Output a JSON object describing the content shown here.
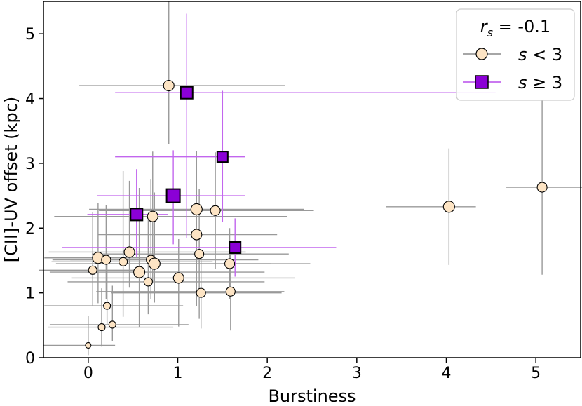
{
  "chart_data": {
    "type": "scatter",
    "xlabel": "Burstiness",
    "ylabel": "[CII]-UV offset (kpc)",
    "xlim": [
      -0.5,
      5.5
    ],
    "ylim": [
      0,
      5.5
    ],
    "xticks": [
      0,
      1,
      2,
      3,
      4,
      5
    ],
    "yticks": [
      0,
      1,
      2,
      3,
      4,
      5
    ],
    "grid": false,
    "legend_position": "top-right",
    "legend": {
      "title_var": "r",
      "title_sub": "s",
      "title_value": " = -0.1",
      "entries": [
        {
          "var": "s",
          "op": " < 3",
          "color": "#fde4c4",
          "marker": "circle"
        },
        {
          "var": "s",
          "op": " ≥ 3",
          "color": "#8b00d6",
          "marker": "square"
        }
      ]
    },
    "series": [
      {
        "name": "s < 3",
        "marker": "circle",
        "color": "#fde4c4",
        "errorbar_color": "#999999",
        "points": [
          {
            "x": 0.0,
            "y": 0.19,
            "xerr": [
              0.5,
              0.3
            ],
            "yerr": [
              0.15,
              0.45
            ],
            "size": 4
          },
          {
            "x": 0.15,
            "y": 0.47,
            "xerr": [
              0.6,
              0.8
            ],
            "yerr": [
              0.3,
              0.6
            ],
            "size": 5
          },
          {
            "x": 0.27,
            "y": 0.51,
            "xerr": [
              0.7,
              0.85
            ],
            "yerr": [
              0.25,
              0.6
            ],
            "size": 5
          },
          {
            "x": 0.21,
            "y": 0.8,
            "xerr": [
              0.7,
              0.85
            ],
            "yerr": [
              0.3,
              0.7
            ],
            "size": 5
          },
          {
            "x": 0.05,
            "y": 1.35,
            "xerr": [
              0.6,
              0.5
            ],
            "yerr": [
              0.55,
              0.9
            ],
            "size": 6
          },
          {
            "x": 0.11,
            "y": 1.54,
            "xerr": [
              0.6,
              0.6
            ],
            "yerr": [
              0.7,
              0.85
            ],
            "size": 8
          },
          {
            "x": 0.2,
            "y": 1.51,
            "xerr": [
              0.6,
              0.5
            ],
            "yerr": [
              0.6,
              0.85
            ],
            "size": 6.5
          },
          {
            "x": 0.39,
            "y": 1.48,
            "xerr": [
              0.8,
              1.0
            ],
            "yerr": [
              0.85,
              1.4
            ],
            "size": 6
          },
          {
            "x": 0.46,
            "y": 1.63,
            "xerr": [
              0.9,
              1.3
            ],
            "yerr": [
              0.55,
              1.1
            ],
            "size": 7.5
          },
          {
            "x": 0.57,
            "y": 1.32,
            "xerr": [
              1.0,
              1.4
            ],
            "yerr": [
              0.85,
              1.3
            ],
            "size": 8
          },
          {
            "x": 0.67,
            "y": 1.17,
            "xerr": [
              0.9,
              1.3
            ],
            "yerr": [
              0.5,
              1.0
            ],
            "size": 6
          },
          {
            "x": 0.7,
            "y": 1.51,
            "xerr": [
              0.9,
              1.2
            ],
            "yerr": [
              0.6,
              1.25
            ],
            "size": 6.5
          },
          {
            "x": 0.74,
            "y": 1.45,
            "xerr": [
              1.1,
              1.3
            ],
            "yerr": [
              0.6,
              1.1
            ],
            "size": 8
          },
          {
            "x": 0.72,
            "y": 2.18,
            "xerr": [
              1.1,
              1.5
            ],
            "yerr": [
              1.0,
              1.0
            ],
            "size": 7.5
          },
          {
            "x": 0.9,
            "y": 4.2,
            "xerr": [
              1.0,
              1.3
            ],
            "yerr": [
              0.9,
              1.3
            ],
            "size": 7.5
          },
          {
            "x": 1.01,
            "y": 1.23,
            "xerr": [
              1.2,
              1.3
            ],
            "yerr": [
              0.75,
              0.6
            ],
            "size": 7.5
          },
          {
            "x": 1.21,
            "y": 2.29,
            "xerr": [
              1.2,
              1.2
            ],
            "yerr": [
              1.1,
              0.9
            ],
            "size": 8
          },
          {
            "x": 1.21,
            "y": 1.9,
            "xerr": [
              1.1,
              0.9
            ],
            "yerr": [
              1.1,
              0.8
            ],
            "size": 7.5
          },
          {
            "x": 1.24,
            "y": 1.6,
            "xerr": [
              1.2,
              1.0
            ],
            "yerr": [
              1.0,
              1.0
            ],
            "size": 6.5
          },
          {
            "x": 1.26,
            "y": 1.0,
            "xerr": [
              1.0,
              0.9
            ],
            "yerr": [
              0.55,
              0.5
            ],
            "size": 6.5
          },
          {
            "x": 1.42,
            "y": 2.27,
            "xerr": [
              1.3,
              1.1
            ],
            "yerr": [
              0.9,
              0.9
            ],
            "size": 7
          },
          {
            "x": 1.58,
            "y": 1.45,
            "xerr": [
              1.5,
              0.9
            ],
            "yerr": [
              0.55,
              0.55
            ],
            "size": 7
          },
          {
            "x": 1.59,
            "y": 1.02,
            "xerr": [
              1.5,
              0.6
            ],
            "yerr": [
              0.6,
              0.6
            ],
            "size": 6.5
          },
          {
            "x": 4.03,
            "y": 2.33,
            "xerr": [
              0.7,
              0.3
            ],
            "yerr": [
              0.9,
              0.9
            ],
            "size": 8
          },
          {
            "x": 5.07,
            "y": 2.63,
            "xerr": [
              0.4,
              0.45
            ],
            "yerr": [
              1.35,
              1.35
            ],
            "size": 7
          }
        ]
      },
      {
        "name": "s ≥ 3",
        "marker": "square",
        "color": "#8b00d6",
        "errorbar_color": "#c266ee",
        "points": [
          {
            "x": 1.1,
            "y": 4.09,
            "xerr": [
              0.8,
              3.45
            ],
            "yerr": [
              2.25,
              1.22
            ],
            "size": 17
          },
          {
            "x": 1.5,
            "y": 3.1,
            "xerr": [
              1.2,
              0.25
            ],
            "yerr": [
              1.0,
              1.02
            ],
            "size": 15
          },
          {
            "x": 0.95,
            "y": 2.5,
            "xerr": [
              0.85,
              0.8
            ],
            "yerr": [
              0.75,
              0.7
            ],
            "size": 19
          },
          {
            "x": 0.54,
            "y": 2.21,
            "xerr": [
              0.55,
              0.35
            ],
            "yerr": [
              0.65,
              0.7
            ],
            "size": 17
          },
          {
            "x": 1.64,
            "y": 1.7,
            "xerr": [
              1.93,
              1.13
            ],
            "yerr": [
              0.45,
              0.45
            ],
            "size": 16
          }
        ]
      }
    ]
  }
}
